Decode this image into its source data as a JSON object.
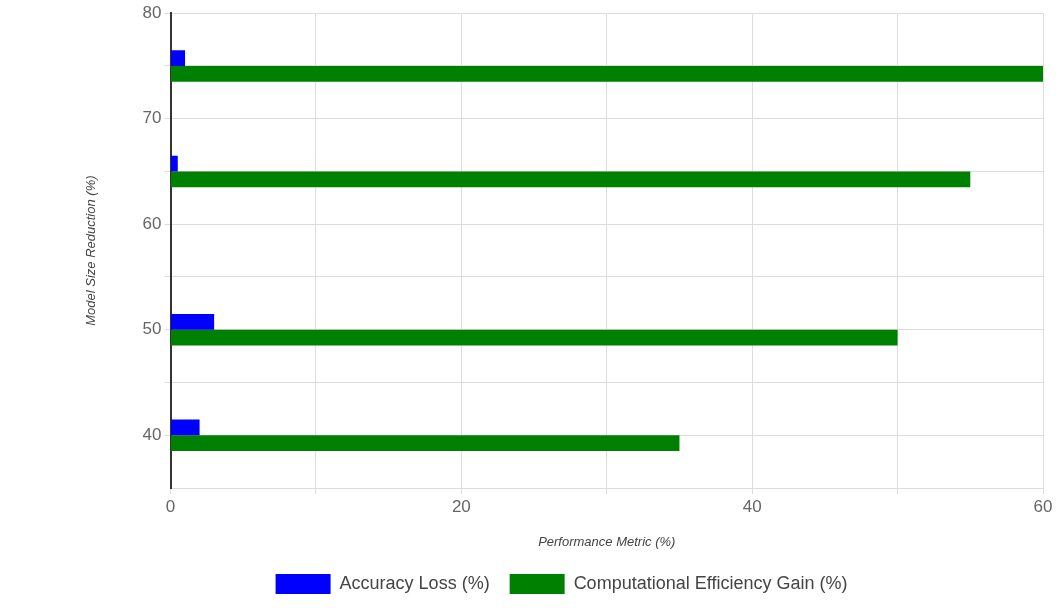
{
  "chart_data": {
    "type": "bar",
    "orientation": "horizontal",
    "xlabel": "Performance Metric (%)",
    "ylabel": "Model Size Reduction (%)",
    "x": [
      40,
      50,
      65,
      75
    ],
    "series": [
      {
        "name": "Accuracy Loss (%)",
        "color": "#0000ff",
        "values": [
          2,
          3,
          0.5,
          1
        ]
      },
      {
        "name": "Computational Efficiency Gain (%)",
        "color": "#008000",
        "values": [
          35,
          50,
          55,
          60
        ]
      }
    ],
    "xlim": [
      0,
      60
    ],
    "xticks": [
      0,
      {
        "value": 10,
        "label": null
      },
      20,
      {
        "value": 30,
        "label": null
      },
      40,
      {
        "value": 50,
        "label": null
      },
      60
    ],
    "ylim": [
      35,
      80
    ],
    "yticks": [
      40,
      {
        "value": 45,
        "label": null
      },
      50,
      {
        "value": 55,
        "label": null
      },
      60,
      {
        "value": 65,
        "label": null
      },
      70,
      {
        "value": 75,
        "label": null
      },
      80
    ],
    "grid": true,
    "legend": "bottom"
  }
}
